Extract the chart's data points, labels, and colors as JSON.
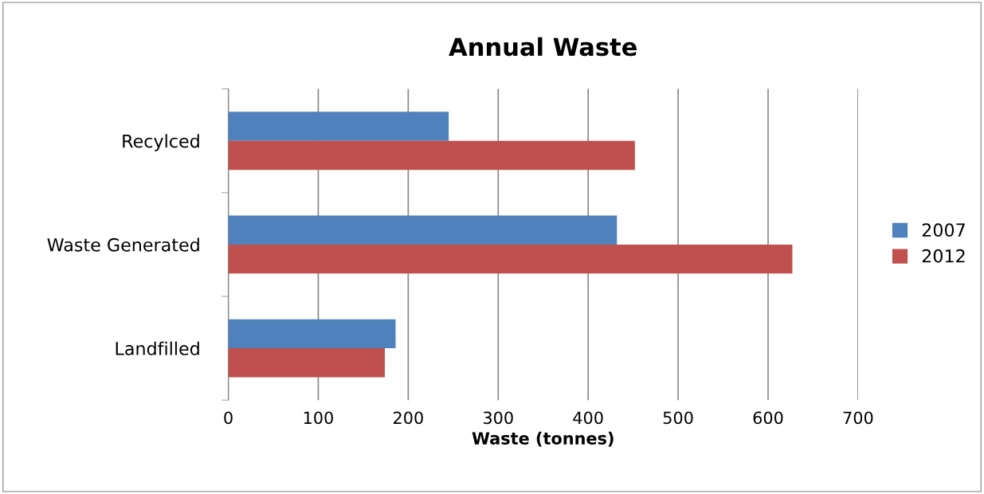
{
  "chart_data": {
    "type": "bar",
    "orientation": "horizontal",
    "title": "Annual Waste",
    "xlabel": "Waste (tonnes)",
    "categories": [
      "Recylced",
      "Waste Generated",
      "Landfilled"
    ],
    "series": [
      {
        "name": "2007",
        "color": "#4f81bd",
        "values": [
          245,
          432,
          186
        ]
      },
      {
        "name": "2012",
        "color": "#c0504d",
        "values": [
          452,
          627,
          174
        ]
      }
    ],
    "xlim": [
      0,
      700
    ],
    "xticks": [
      0,
      100,
      200,
      300,
      400,
      500,
      600,
      700
    ],
    "grid": "x",
    "legend": "right"
  }
}
